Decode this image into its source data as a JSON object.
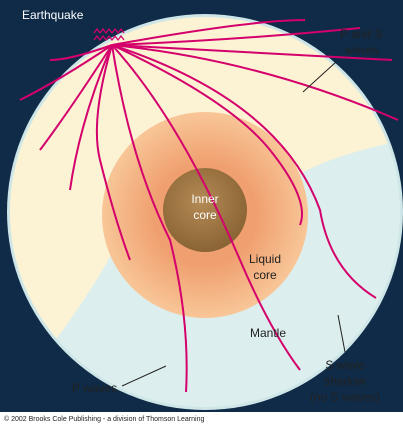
{
  "labels": {
    "earthquake": "Earthquake",
    "p_and_s_waves": [
      "P and S",
      "waves"
    ],
    "inner_core": [
      "Inner",
      "core"
    ],
    "liquid_core": [
      "Liquid",
      "core"
    ],
    "mantle": "Mantle",
    "s_wave_shadow": [
      "S wave",
      "shadow",
      "(no S waves)"
    ],
    "p_waves": "P waves"
  },
  "footer": {
    "copyright": "© 2002 Brooks Cole Publishing - a division of Thomson Learning"
  }
}
